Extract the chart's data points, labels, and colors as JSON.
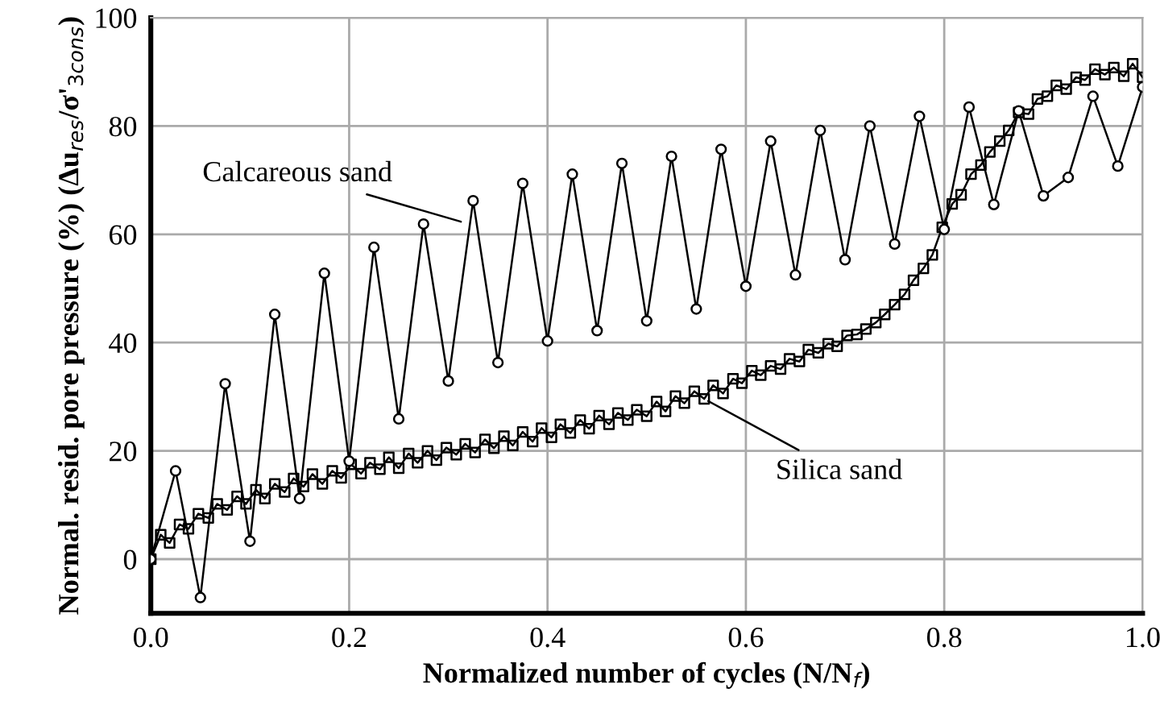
{
  "chart_data": {
    "type": "line",
    "xlabel": "Normalized number of cycles (N/N$_{f}$)",
    "ylabel": "Normal. resid. pore pressure (%) (Δu$_{res}$/σ'$_{3cons}$)",
    "xlim": [
      0,
      1
    ],
    "ylim": [
      -10,
      100
    ],
    "xticks": [
      {
        "value": 0,
        "label": "0.0"
      },
      0.2,
      0.4,
      0.6,
      0.8,
      {
        "value": 1,
        "label": "1.0"
      }
    ],
    "yticks": [
      0,
      20,
      40,
      60,
      80,
      100
    ],
    "grid": true,
    "series": [
      {
        "color": "#000000",
        "marker": "square",
        "x": [
          0,
          0.01,
          0.019,
          0.029,
          0.038,
          0.048,
          0.058,
          0.067,
          0.077,
          0.087,
          0.096,
          0.106,
          0.115,
          0.125,
          0.135,
          0.144,
          0.154,
          0.163,
          0.173,
          0.183,
          0.192,
          0.202,
          0.212,
          0.221,
          0.231,
          0.24,
          0.25,
          0.26,
          0.269,
          0.279,
          0.288,
          0.298,
          0.308,
          0.317,
          0.327,
          0.337,
          0.346,
          0.356,
          0.365,
          0.375,
          0.385,
          0.394,
          0.404,
          0.413,
          0.423,
          0.433,
          0.442,
          0.452,
          0.462,
          0.471,
          0.481,
          0.49,
          0.5,
          0.51,
          0.519,
          0.529,
          0.538,
          0.548,
          0.558,
          0.567,
          0.577,
          0.587,
          0.596,
          0.606,
          0.615,
          0.625,
          0.635,
          0.644,
          0.654,
          0.663,
          0.673,
          0.683,
          0.692,
          0.702,
          0.712,
          0.721,
          0.731,
          0.74,
          0.75,
          0.76,
          0.769,
          0.779,
          0.788,
          0.798,
          0.808,
          0.817,
          0.827,
          0.837,
          0.846,
          0.856,
          0.865,
          0.875,
          0.885,
          0.894,
          0.904,
          0.913,
          0.923,
          0.933,
          0.942,
          0.952,
          0.962,
          0.971,
          0.981,
          0.99,
          1.0
        ],
        "values": [
          0,
          4.5,
          3.0,
          6.4,
          5.6,
          8.4,
          7.6,
          10.2,
          9.1,
          11.6,
          10.2,
          12.8,
          11.2,
          13.9,
          12.4,
          14.9,
          13.4,
          15.7,
          13.9,
          16.3,
          15.0,
          17.5,
          15.8,
          17.8,
          16.6,
          18.8,
          16.8,
          19.5,
          17.8,
          20.0,
          18.3,
          20.6,
          19.3,
          21.3,
          19.7,
          22.1,
          20.5,
          22.7,
          21.0,
          23.5,
          21.7,
          24.2,
          22.5,
          24.9,
          23.3,
          25.7,
          24.1,
          26.5,
          24.9,
          27.0,
          25.7,
          27.6,
          26.4,
          29.1,
          27.3,
          30.1,
          28.8,
          31.0,
          29.6,
          32.1,
          30.6,
          33.3,
          32.5,
          34.8,
          34.0,
          35.7,
          35.1,
          37.0,
          36.5,
          38.7,
          38.1,
          39.8,
          39.3,
          41.3,
          41.5,
          42.5,
          43.7,
          45.2,
          47.0,
          48.9,
          51.5,
          53.7,
          56.2,
          61.3,
          65.6,
          67.3,
          71.1,
          72.8,
          75.2,
          77.2,
          79.2,
          82.5,
          82.2,
          85.0,
          85.5,
          87.5,
          86.8,
          89.0,
          88.5,
          90.5,
          89.5,
          90.8,
          89.2,
          91.5,
          89.0
        ]
      },
      {
        "color": "#000000",
        "marker": "circle",
        "x": [
          0,
          0.025,
          0.05,
          0.075,
          0.1,
          0.125,
          0.15,
          0.175,
          0.2,
          0.225,
          0.25,
          0.275,
          0.3,
          0.325,
          0.35,
          0.375,
          0.4,
          0.425,
          0.45,
          0.475,
          0.5,
          0.525,
          0.55,
          0.575,
          0.6,
          0.625,
          0.65,
          0.675,
          0.7,
          0.725,
          0.75,
          0.775,
          0.8,
          0.825,
          0.85,
          0.875,
          0.9,
          0.925,
          0.95,
          0.975,
          1.0
        ],
        "values": [
          0,
          16.3,
          -7.1,
          32.4,
          3.3,
          45.2,
          11.2,
          52.8,
          18.1,
          57.6,
          25.9,
          61.9,
          32.9,
          66.2,
          36.3,
          69.4,
          40.3,
          71.1,
          42.2,
          73.1,
          44.0,
          74.4,
          46.2,
          75.7,
          50.4,
          77.2,
          52.5,
          79.2,
          55.3,
          80.0,
          58.2,
          81.8,
          60.9,
          83.5,
          65.5,
          82.8,
          67.1,
          70.5,
          85.5,
          72.6,
          87.2
        ]
      }
    ],
    "annotations": [
      {
        "text": "Calcareous sand",
        "x": 0.317,
        "y": 62.1
      },
      {
        "text": "Silica sand",
        "x": 0.558,
        "y": 29.6
      }
    ]
  }
}
